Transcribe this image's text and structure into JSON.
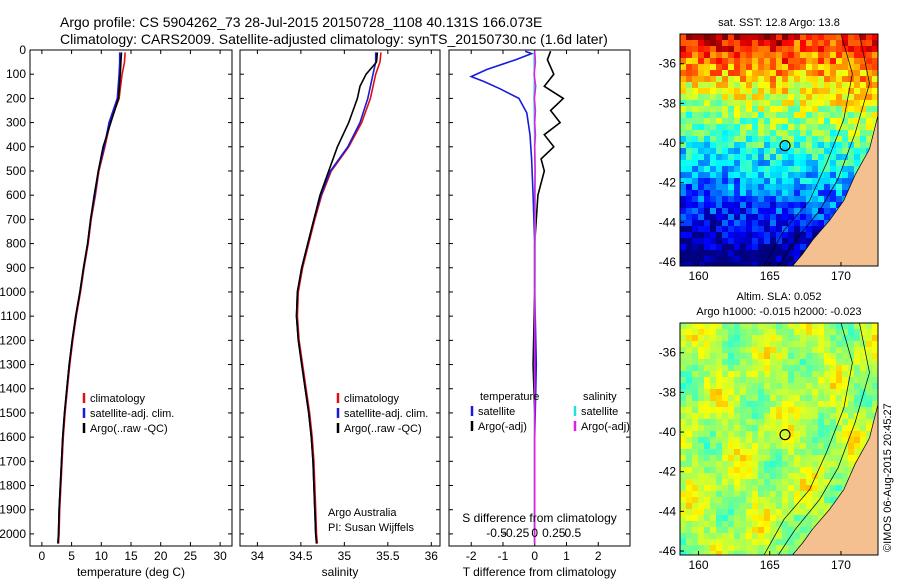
{
  "header": {
    "line1": "Argo profile: CS 5904262_73 28-Jul-2015 20150728_1108 40.131S 166.073E",
    "line2": "Climatology: CARS2009. Satellite-adjusted climatology: synTS_20150730.nc (1.6d later)"
  },
  "stamp": "©IMOS 06-Aug-2015 20:45:27",
  "colors": {
    "climatology": "#e01010",
    "satellite": "#1a1adc",
    "argo": "#000000",
    "sal_satellite": "#22e0e0",
    "sal_argo": "#e020e0",
    "land": "#f5c090"
  },
  "chart_data": [
    {
      "id": "temperature",
      "type": "line",
      "xlabel": "temperature (deg C)",
      "xlim": [
        -2,
        32
      ],
      "ylim": [
        2050,
        0
      ],
      "xticks": [
        0,
        5,
        10,
        15,
        20,
        25,
        30
      ],
      "yticks": [
        0,
        100,
        200,
        300,
        400,
        500,
        600,
        700,
        800,
        900,
        1000,
        1100,
        1200,
        1300,
        1400,
        1500,
        1600,
        1700,
        1800,
        1900,
        2000
      ],
      "legend": {
        "position": "lower-right",
        "entries": [
          "climatology",
          "satellite-adj. clim.",
          "Argo(..raw -QC)"
        ]
      },
      "series": [
        {
          "name": "climatology",
          "color": "#e01010",
          "points": [
            [
              14.0,
              10
            ],
            [
              13.9,
              50
            ],
            [
              13.5,
              100
            ],
            [
              13.0,
              200
            ],
            [
              11.5,
              300
            ],
            [
              10.6,
              400
            ],
            [
              9.6,
              500
            ],
            [
              9.0,
              600
            ],
            [
              8.3,
              700
            ],
            [
              7.8,
              800
            ],
            [
              7.1,
              900
            ],
            [
              6.5,
              1000
            ],
            [
              5.8,
              1100
            ],
            [
              5.2,
              1200
            ],
            [
              4.7,
              1300
            ],
            [
              4.3,
              1400
            ],
            [
              3.9,
              1500
            ],
            [
              3.6,
              1600
            ],
            [
              3.4,
              1700
            ],
            [
              3.2,
              1800
            ],
            [
              3.0,
              1900
            ],
            [
              2.9,
              2000
            ],
            [
              2.8,
              2040
            ]
          ]
        },
        {
          "name": "satellite-adj. clim.",
          "color": "#1a1adc",
          "points": [
            [
              13.1,
              10
            ],
            [
              13.1,
              50
            ],
            [
              13.0,
              100
            ],
            [
              12.7,
              200
            ],
            [
              11.3,
              300
            ],
            [
              10.5,
              400
            ],
            [
              9.5,
              500
            ],
            [
              8.9,
              600
            ],
            [
              8.2,
              700
            ],
            [
              7.7,
              800
            ],
            [
              7.0,
              900
            ],
            [
              6.4,
              1000
            ],
            [
              5.7,
              1100
            ],
            [
              5.1,
              1200
            ],
            [
              4.6,
              1300
            ],
            [
              4.2,
              1400
            ],
            [
              3.8,
              1500
            ],
            [
              3.5,
              1600
            ],
            [
              3.3,
              1700
            ],
            [
              3.1,
              1800
            ],
            [
              2.9,
              1900
            ],
            [
              2.8,
              2000
            ],
            [
              2.7,
              2040
            ]
          ]
        },
        {
          "name": "Argo(..raw -QC)",
          "color": "#000000",
          "points": [
            [
              13.4,
              10
            ],
            [
              13.3,
              50
            ],
            [
              13.2,
              100
            ],
            [
              12.9,
              200
            ],
            [
              11.6,
              300
            ],
            [
              10.3,
              400
            ],
            [
              9.5,
              500
            ],
            [
              8.8,
              600
            ],
            [
              8.2,
              700
            ],
            [
              7.7,
              800
            ],
            [
              7.0,
              900
            ],
            [
              6.4,
              1000
            ],
            [
              5.7,
              1100
            ],
            [
              5.1,
              1200
            ],
            [
              4.6,
              1300
            ],
            [
              4.2,
              1400
            ],
            [
              3.8,
              1500
            ],
            [
              3.5,
              1600
            ],
            [
              3.3,
              1700
            ],
            [
              3.1,
              1800
            ],
            [
              2.9,
              1900
            ],
            [
              2.8,
              2000
            ],
            [
              2.7,
              2040
            ]
          ]
        }
      ]
    },
    {
      "id": "salinity",
      "type": "line",
      "xlabel": "salinity",
      "xlim": [
        33.8,
        36.1
      ],
      "ylim": [
        2050,
        0
      ],
      "xticks": [
        34,
        34.5,
        35,
        35.5,
        36
      ],
      "legend": {
        "position": "lower-right",
        "entries": [
          "climatology",
          "satellite-adj. clim.",
          "Argo(..raw -QC)"
        ]
      },
      "annotation": [
        "Argo Australia",
        "PI: Susan Wijffels"
      ],
      "series": [
        {
          "name": "climatology",
          "color": "#e01010",
          "points": [
            [
              35.42,
              10
            ],
            [
              35.41,
              50
            ],
            [
              35.36,
              100
            ],
            [
              35.3,
              200
            ],
            [
              35.2,
              300
            ],
            [
              35.05,
              400
            ],
            [
              34.85,
              500
            ],
            [
              34.74,
              600
            ],
            [
              34.66,
              700
            ],
            [
              34.59,
              800
            ],
            [
              34.52,
              900
            ],
            [
              34.47,
              1000
            ],
            [
              34.46,
              1100
            ],
            [
              34.48,
              1200
            ],
            [
              34.52,
              1300
            ],
            [
              34.56,
              1400
            ],
            [
              34.6,
              1500
            ],
            [
              34.63,
              1600
            ],
            [
              34.65,
              1700
            ],
            [
              34.66,
              1800
            ],
            [
              34.67,
              1900
            ],
            [
              34.68,
              2000
            ],
            [
              34.69,
              2040
            ]
          ]
        },
        {
          "name": "satellite-adj. clim.",
          "color": "#1a1adc",
          "points": [
            [
              35.36,
              10
            ],
            [
              35.36,
              50
            ],
            [
              35.33,
              100
            ],
            [
              35.27,
              200
            ],
            [
              35.18,
              300
            ],
            [
              35.04,
              400
            ],
            [
              34.84,
              500
            ],
            [
              34.73,
              600
            ],
            [
              34.65,
              700
            ],
            [
              34.58,
              800
            ],
            [
              34.51,
              900
            ],
            [
              34.46,
              1000
            ],
            [
              34.45,
              1100
            ],
            [
              34.47,
              1200
            ],
            [
              34.51,
              1300
            ],
            [
              34.55,
              1400
            ],
            [
              34.59,
              1500
            ],
            [
              34.62,
              1600
            ],
            [
              34.64,
              1700
            ],
            [
              34.65,
              1800
            ],
            [
              34.66,
              1900
            ],
            [
              34.67,
              2000
            ],
            [
              34.68,
              2040
            ]
          ]
        },
        {
          "name": "Argo(..raw -QC)",
          "color": "#000000",
          "points": [
            [
              35.38,
              10
            ],
            [
              35.37,
              50
            ],
            [
              35.25,
              100
            ],
            [
              35.18,
              150
            ],
            [
              35.15,
              200
            ],
            [
              35.05,
              300
            ],
            [
              34.92,
              400
            ],
            [
              34.82,
              500
            ],
            [
              34.72,
              600
            ],
            [
              34.65,
              700
            ],
            [
              34.58,
              800
            ],
            [
              34.51,
              900
            ],
            [
              34.46,
              1000
            ],
            [
              34.45,
              1100
            ],
            [
              34.47,
              1200
            ],
            [
              34.51,
              1300
            ],
            [
              34.55,
              1400
            ],
            [
              34.59,
              1500
            ],
            [
              34.62,
              1600
            ],
            [
              34.64,
              1700
            ],
            [
              34.65,
              1800
            ],
            [
              34.66,
              1900
            ],
            [
              34.67,
              2000
            ],
            [
              34.68,
              2040
            ]
          ]
        }
      ]
    },
    {
      "id": "differences",
      "type": "line",
      "xlabel": "T difference from climatology",
      "xlabel_top": "S difference from climatology",
      "xlim": [
        -2.7,
        3.0
      ],
      "ylim": [
        2050,
        0
      ],
      "xticks": [
        -2,
        -1,
        0,
        1,
        2
      ],
      "xticklabels_top": [
        "-0.5",
        "-0.25",
        "0",
        "0.25",
        "0.5"
      ],
      "legend_headers": [
        "temperature",
        "salinity"
      ],
      "legend": {
        "position": "lower-center",
        "entries": [
          "satellite",
          "Argo(-adj)",
          "satellite",
          "Argo(-adj)"
        ]
      },
      "series": [
        {
          "name": "satellite",
          "quantity": "temperature",
          "color": "#1a1adc",
          "points": [
            [
              -0.3,
              5
            ],
            [
              -0.1,
              15
            ],
            [
              -0.6,
              40
            ],
            [
              -1.5,
              80
            ],
            [
              -2.0,
              110
            ],
            [
              -1.6,
              130
            ],
            [
              -1.1,
              160
            ],
            [
              -0.5,
              200
            ],
            [
              -0.25,
              260
            ],
            [
              -0.15,
              350
            ],
            [
              -0.1,
              450
            ],
            [
              -0.05,
              600
            ],
            [
              0.0,
              800
            ],
            [
              0.0,
              1000
            ],
            [
              0.05,
              1300
            ],
            [
              0.0,
              1600
            ],
            [
              0.0,
              1900
            ],
            [
              0.0,
              2040
            ]
          ]
        },
        {
          "name": "Argo(-adj)",
          "quantity": "temperature",
          "color": "#000000",
          "points": [
            [
              0.5,
              5
            ],
            [
              0.4,
              40
            ],
            [
              0.6,
              100
            ],
            [
              0.3,
              150
            ],
            [
              0.9,
              200
            ],
            [
              0.5,
              250
            ],
            [
              0.8,
              300
            ],
            [
              0.3,
              350
            ],
            [
              0.6,
              400
            ],
            [
              0.2,
              450
            ],
            [
              0.3,
              500
            ],
            [
              0.1,
              600
            ],
            [
              0.0,
              800
            ],
            [
              0.0,
              1000
            ],
            [
              -0.05,
              1300
            ],
            [
              0.0,
              1500
            ],
            [
              0.0,
              1800
            ],
            [
              0.0,
              2040
            ]
          ]
        },
        {
          "name": "satellite",
          "quantity": "salinity",
          "color": "#22e0e0",
          "points": [
            [
              -0.01,
              5
            ],
            [
              -0.02,
              50
            ],
            [
              -0.01,
              100
            ],
            [
              -0.02,
              200
            ],
            [
              -0.01,
              300
            ],
            [
              0.0,
              400
            ],
            [
              0.01,
              500
            ],
            [
              0.01,
              700
            ],
            [
              0.01,
              900
            ],
            [
              0.0,
              1200
            ],
            [
              0.0,
              1500
            ],
            [
              0.0,
              1800
            ],
            [
              0.0,
              2040
            ]
          ]
        },
        {
          "name": "Argo(-adj)",
          "quantity": "salinity",
          "color": "#e020e0",
          "points": [
            [
              0.0,
              5
            ],
            [
              0.02,
              50
            ],
            [
              -0.02,
              100
            ],
            [
              0.03,
              150
            ],
            [
              -0.01,
              200
            ],
            [
              0.02,
              250
            ],
            [
              0.0,
              300
            ],
            [
              0.02,
              350
            ],
            [
              0.0,
              400
            ],
            [
              0.01,
              500
            ],
            [
              0.0,
              600
            ],
            [
              0.0,
              800
            ],
            [
              0.0,
              1000
            ],
            [
              0.0,
              1400
            ],
            [
              0.0,
              1800
            ],
            [
              0.0,
              2040
            ]
          ]
        }
      ]
    },
    {
      "id": "sst_map",
      "type": "heatmap",
      "title": "sat. SST: 12.8 Argo: 13.8",
      "xlim": [
        158.7,
        172.6
      ],
      "ylim": [
        -46.2,
        -34.5
      ],
      "xticks": [
        160,
        165,
        170
      ],
      "yticks": [
        -36,
        -38,
        -40,
        -42,
        -44,
        -46
      ],
      "colormap": "jet",
      "marker": {
        "lon": 166.073,
        "lat": -40.131,
        "shape": "circle"
      }
    },
    {
      "id": "sla_map",
      "type": "heatmap",
      "title": "Altim. SLA: 0.052",
      "subtitle": "Argo h1000: -0.015 h2000: -0.023",
      "xlim": [
        158.7,
        172.6
      ],
      "ylim": [
        -46.2,
        -34.5
      ],
      "xticks": [
        160,
        165,
        170
      ],
      "yticks": [
        -36,
        -38,
        -40,
        -42,
        -44,
        -46
      ],
      "colormap": "jet",
      "marker": {
        "lon": 166.073,
        "lat": -40.131,
        "shape": "circle"
      }
    }
  ]
}
